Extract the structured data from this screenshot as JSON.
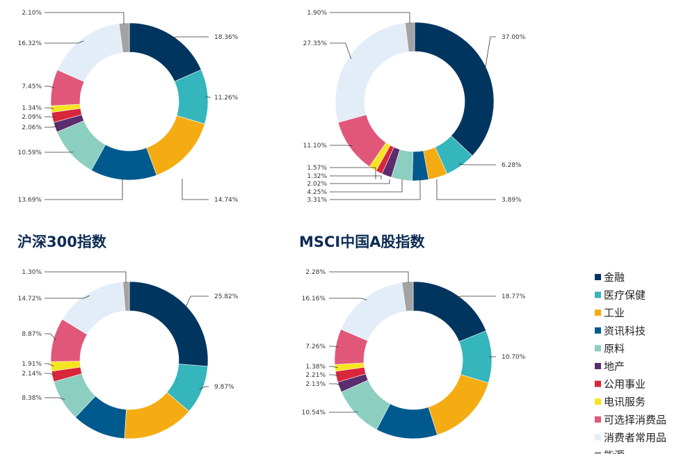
{
  "categories": [
    "金融",
    "医疗保健",
    "工业",
    "资讯科技",
    "原料",
    "地产",
    "公用事业",
    "电讯服务",
    "可选择消费品",
    "消费者常用品",
    "能源"
  ],
  "colors": [
    "#003560",
    "#35b5bc",
    "#f5ac12",
    "#005a8d",
    "#8ccebf",
    "#5b2c6e",
    "#d8263a",
    "#f6e41f",
    "#e0577a",
    "#e3edf7",
    "#a3a3a3"
  ],
  "chart_data": [
    {
      "type": "pie",
      "title": "",
      "series": [
        {
          "values": [
            18.36,
            11.26,
            14.74,
            13.69,
            10.59,
            2.06,
            2.09,
            1.34,
            7.45,
            16.32,
            2.1
          ]
        }
      ],
      "labels": [
        "18.36%",
        "11.26%",
        "14.74%",
        "13.69%",
        "10.59%",
        "2.06%",
        "2.09%",
        "1.34%",
        "7.45%",
        "16.32%",
        "2.10%"
      ]
    },
    {
      "type": "pie",
      "title": "",
      "series": [
        {
          "values": [
            37.0,
            6.28,
            3.89,
            3.31,
            4.25,
            2.02,
            1.32,
            1.57,
            11.1,
            27.35,
            1.9
          ]
        }
      ],
      "labels": [
        "37.00%",
        "6.28%",
        "3.89%",
        "3.31%",
        "4.25%",
        "2.02%",
        "1.32%",
        "1.57%",
        "11.10%",
        "27.35%",
        "1.90%"
      ]
    },
    {
      "type": "pie",
      "title": "沪深300指数",
      "series": [
        {
          "values": [
            25.82,
            9.87,
            14.47,
            10.87,
            8.38,
            0,
            2.14,
            1.91,
            8.87,
            14.72,
            1.3
          ]
        }
      ],
      "labels": [
        "25.82%",
        "9.87%",
        "",
        "",
        "8.38%",
        "",
        "2.14%",
        "1.91%",
        "8.87%",
        "14.72%",
        "1.30%"
      ]
    },
    {
      "type": "pie",
      "title": "MSCI中国A股指数",
      "series": [
        {
          "values": [
            18.77,
            10.7,
            15.23,
            12.62,
            10.54,
            2.13,
            2.21,
            1.38,
            7.26,
            16.16,
            2.28
          ]
        }
      ],
      "labels": [
        "18.77%",
        "10.70%",
        "",
        "",
        "10.54%",
        "2.13%",
        "2.21%",
        "1.38%",
        "7.26%",
        "16.16%",
        "2.28%"
      ]
    }
  ]
}
